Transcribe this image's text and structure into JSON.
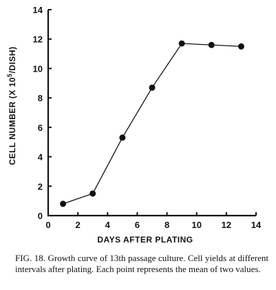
{
  "chart_data": {
    "type": "line",
    "title": "",
    "xlabel": "DAYS AFTER PLATING",
    "ylabel": "CELL NUMBER (X 10",
    "ylabel_superscript": "5",
    "ylabel_suffix": "/DISH)",
    "xlim": [
      0,
      14
    ],
    "ylim": [
      0,
      14
    ],
    "x_ticks": [
      0,
      2,
      4,
      6,
      8,
      10,
      12,
      14
    ],
    "y_ticks": [
      0,
      2,
      4,
      6,
      8,
      10,
      12,
      14
    ],
    "grid": false,
    "series": [
      {
        "x": [
          1,
          3,
          5,
          7,
          9,
          11,
          13
        ],
        "values": [
          0.8,
          1.5,
          5.3,
          8.7,
          11.7,
          11.6,
          11.5
        ]
      }
    ]
  },
  "caption": {
    "label": "FIG. 18.",
    "text": "Growth curve of 13th passage culture. Cell yields at different intervals after plating. Each point represents the mean of two values."
  }
}
